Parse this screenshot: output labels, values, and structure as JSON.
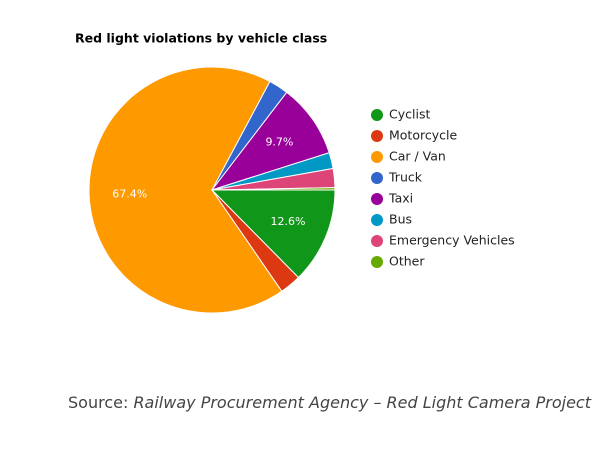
{
  "chart_data": {
    "type": "pie",
    "title": "Red light violations by vehicle class",
    "categories": [
      "Cyclist",
      "Motorcycle",
      "Car / Van",
      "Truck",
      "Taxi",
      "Bus",
      "Emergency Vehicles",
      "Other"
    ],
    "values": [
      12.6,
      2.8,
      67.4,
      2.6,
      9.7,
      2.1,
      2.5,
      0.3
    ],
    "value_labels": [
      "12.6%",
      null,
      "67.4%",
      null,
      "9.7%",
      null,
      null,
      null
    ],
    "colors": [
      "#109618",
      "#dc3912",
      "#ff9900",
      "#3366cc",
      "#990099",
      "#0099c6",
      "#dd4477",
      "#66aa00"
    ],
    "legend": "right",
    "source_label": "Source:",
    "source": "Railway Procurement Agency – Red Light Camera Project"
  }
}
